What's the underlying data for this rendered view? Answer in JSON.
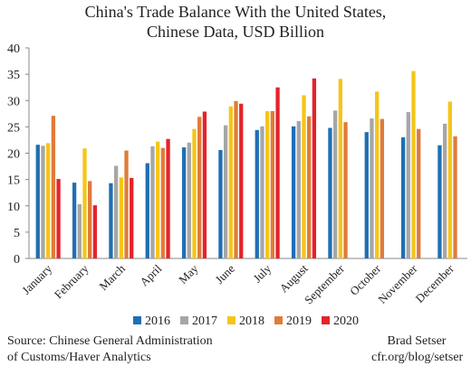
{
  "chart_data": {
    "type": "bar",
    "title": "China's Trade Balance With the United States,",
    "subtitle": "Chinese Data, USD Billion",
    "xlabel": "",
    "ylabel": "",
    "ylim": [
      0,
      40
    ],
    "yticks": [
      0,
      5,
      10,
      15,
      20,
      25,
      30,
      35,
      40
    ],
    "grid": false,
    "legend_position": "bottom",
    "categories": [
      "January",
      "February",
      "March",
      "April",
      "May",
      "June",
      "July",
      "August",
      "September",
      "October",
      "November",
      "December"
    ],
    "series": [
      {
        "name": "2016",
        "color": "#1f6fb4",
        "values": [
          21.6,
          14.4,
          14.3,
          18.1,
          21.1,
          20.6,
          24.4,
          25.1,
          24.8,
          24.0,
          23.0,
          21.5
        ]
      },
      {
        "name": "2017",
        "color": "#a6a6a6",
        "values": [
          21.4,
          10.3,
          17.6,
          21.3,
          22.0,
          25.3,
          25.1,
          26.1,
          28.1,
          26.6,
          27.8,
          25.6
        ]
      },
      {
        "name": "2018",
        "color": "#f5c518",
        "values": [
          21.9,
          20.9,
          15.4,
          22.2,
          24.6,
          28.9,
          28.0,
          31.0,
          34.1,
          31.7,
          35.6,
          29.8
        ]
      },
      {
        "name": "2019",
        "color": "#e07b39",
        "values": [
          27.1,
          14.7,
          20.5,
          21.0,
          26.9,
          29.9,
          28.0,
          27.0,
          25.9,
          26.5,
          24.6,
          23.2
        ]
      },
      {
        "name": "2020",
        "color": "#e4232b",
        "values": [
          15.1,
          10.1,
          15.3,
          22.7,
          27.9,
          29.4,
          32.5,
          34.2,
          null,
          null,
          null,
          null
        ]
      }
    ],
    "source": "Source: Chinese General Administration\nof Customs/Haver Analytics",
    "credit": "Brad Setser\ncfr.org/blog/setser"
  }
}
